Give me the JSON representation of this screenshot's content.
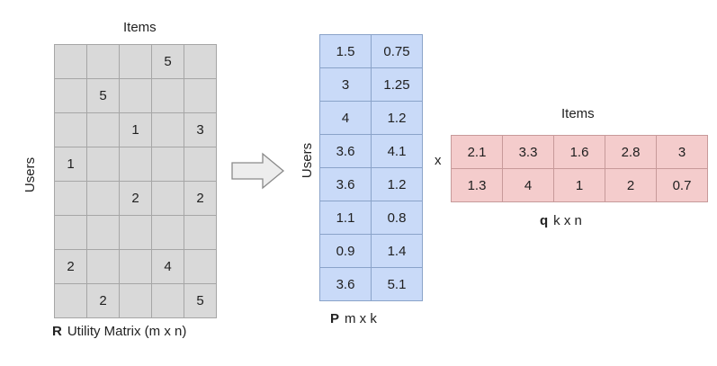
{
  "r_matrix": {
    "top_label": "Items",
    "side_label": "Users",
    "caption_symbol": "R",
    "caption_text": "Utility Matrix (m x n)",
    "rows": [
      [
        "",
        "",
        "",
        "5",
        ""
      ],
      [
        "",
        "5",
        "",
        "",
        ""
      ],
      [
        "",
        "",
        "1",
        "",
        "3"
      ],
      [
        "1",
        "",
        "",
        "",
        ""
      ],
      [
        "",
        "",
        "2",
        "",
        "2"
      ],
      [
        "",
        "",
        "",
        "",
        ""
      ],
      [
        "2",
        "",
        "",
        "4",
        ""
      ],
      [
        "",
        "2",
        "",
        "",
        "5"
      ]
    ],
    "fill_color": "#d9d9d9"
  },
  "arrow": {
    "icon": "right-arrow-icon"
  },
  "p_matrix": {
    "side_label": "Users",
    "caption_symbol": "P",
    "caption_text": "m x k",
    "rows": [
      [
        "1.5",
        "0.75"
      ],
      [
        "3",
        "1.25"
      ],
      [
        "4",
        "1.2"
      ],
      [
        "3.6",
        "4.1"
      ],
      [
        "3.6",
        "1.2"
      ],
      [
        "1.1",
        "0.8"
      ],
      [
        "0.9",
        "1.4"
      ],
      [
        "3.6",
        "5.1"
      ]
    ],
    "fill_color": "#c9daf8"
  },
  "operator": "x",
  "q_matrix": {
    "top_label": "Items",
    "caption_symbol": "q",
    "caption_text": "k x n",
    "rows": [
      [
        "2.1",
        "3.3",
        "1.6",
        "2.8",
        "3"
      ],
      [
        "1.3",
        "4",
        "1",
        "2",
        "0.7"
      ]
    ],
    "fill_color": "#f4cccc"
  }
}
